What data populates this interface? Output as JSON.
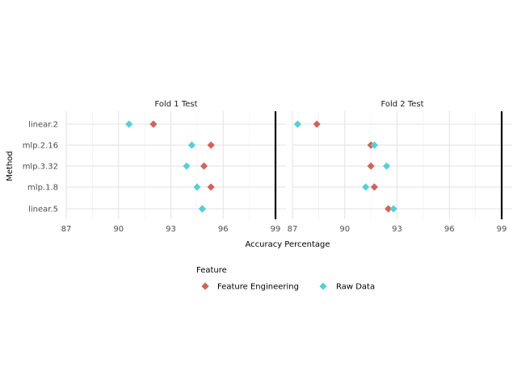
{
  "chart_data": {
    "type": "scatter",
    "x_axis_title": "Accuracy Percentage",
    "y_axis_title": "Method",
    "categories": [
      "linear.2",
      "mlp.2.16",
      "mlp.3.32",
      "mlp.1.8",
      "linear.5"
    ],
    "x_ticks": [
      "87",
      "90",
      "93",
      "96",
      "99"
    ],
    "xlim": [
      87,
      99.6
    ],
    "reference_line_x": 99,
    "grid": true,
    "legend": {
      "title": "Feature",
      "placement": "bottom",
      "items": [
        {
          "label": "Feature Engineering",
          "color": "#d0635a",
          "marker": "diamond"
        },
        {
          "label": "Raw Data",
          "color": "#56cfd6",
          "marker": "diamond"
        }
      ]
    },
    "panels": [
      {
        "title": "Fold 1 Test",
        "series": [
          {
            "name": "Feature Engineering",
            "points": [
              {
                "y": "linear.2",
                "x": 92.0
              },
              {
                "y": "mlp.2.16",
                "x": 95.3
              },
              {
                "y": "mlp.3.32",
                "x": 94.9
              },
              {
                "y": "mlp.1.8",
                "x": 95.3
              },
              {
                "y": "linear.5",
                "x": 94.8
              }
            ]
          },
          {
            "name": "Raw Data",
            "points": [
              {
                "y": "linear.2",
                "x": 90.6
              },
              {
                "y": "mlp.2.16",
                "x": 94.2
              },
              {
                "y": "mlp.3.32",
                "x": 93.9
              },
              {
                "y": "mlp.1.8",
                "x": 94.5
              },
              {
                "y": "linear.5",
                "x": 94.8
              }
            ]
          }
        ]
      },
      {
        "title": "Fold 2 Test",
        "series": [
          {
            "name": "Feature Engineering",
            "points": [
              {
                "y": "linear.2",
                "x": 88.4
              },
              {
                "y": "mlp.2.16",
                "x": 91.5
              },
              {
                "y": "mlp.3.32",
                "x": 91.5
              },
              {
                "y": "mlp.1.8",
                "x": 91.7
              },
              {
                "y": "linear.5",
                "x": 92.5
              }
            ]
          },
          {
            "name": "Raw Data",
            "points": [
              {
                "y": "linear.2",
                "x": 87.3
              },
              {
                "y": "mlp.2.16",
                "x": 91.7
              },
              {
                "y": "mlp.3.32",
                "x": 92.4
              },
              {
                "y": "mlp.1.8",
                "x": 91.2
              },
              {
                "y": "linear.5",
                "x": 92.8
              }
            ]
          }
        ]
      }
    ]
  }
}
